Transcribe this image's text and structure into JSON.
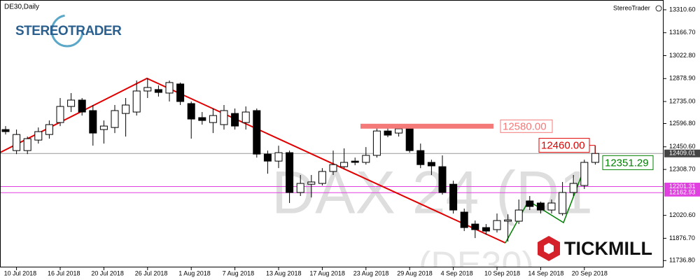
{
  "chart_data": {
    "type": "candlestick",
    "symbol": "DE30,Daily",
    "brand": "StereoTrader",
    "logo_left": "STEREOTRADER",
    "logo_right": "TICKMILL",
    "watermark": "DAX 24 (D1",
    "watermark_sub": "(DE30)",
    "up_color": "#ffffff",
    "down_color": "#000000",
    "categories": [
      null,
      "10 Jul 2018",
      null,
      null,
      null,
      "16 Jul 2018",
      null,
      null,
      null,
      "20 Jul 2018",
      null,
      null,
      null,
      "26 Jul 2018",
      null,
      null,
      null,
      "1 Aug 2018",
      null,
      null,
      null,
      "7 Aug 2018",
      null,
      null,
      null,
      "13 Aug 2018",
      null,
      null,
      null,
      "17 Aug 2018",
      null,
      null,
      null,
      "23 Aug 2018",
      null,
      null,
      null,
      "29 Aug 2018",
      null,
      null,
      null,
      "4 Sep 2018",
      null,
      null,
      null,
      "10 Sep 2018",
      null,
      null,
      null,
      "14 Sep 2018",
      null,
      null,
      null,
      "20 Sep 2018",
      null
    ],
    "open": [
      12559,
      12427,
      12427,
      12493,
      12528,
      12603,
      12704,
      12744,
      12678,
      12559,
      12572,
      12660,
      12669,
      12801,
      12810,
      12788,
      12845,
      12722,
      12634,
      12603,
      12590,
      12660,
      12603,
      12678,
      12405,
      12361,
      12414,
      12164,
      12216,
      12221,
      12296,
      12326,
      12361,
      12353,
      12397,
      12550,
      12537,
      12564,
      12427,
      12353,
      12326,
      12216,
      12041,
      11966,
      11944,
      11931,
      11984,
      11984,
      12111,
      12098,
      12054,
      12032,
      12164,
      12208,
      12353
    ],
    "high": [
      12581,
      12559,
      12515,
      12572,
      12616,
      12757,
      12788,
      12757,
      12713,
      12616,
      12713,
      12757,
      12867,
      12880,
      12836,
      12867,
      12854,
      12735,
      12669,
      12691,
      12713,
      12691,
      12704,
      12691,
      12427,
      12458,
      12427,
      12274,
      12274,
      12317,
      12427,
      12441,
      12383,
      12449,
      12568,
      12581,
      12590,
      12581,
      12471,
      12370,
      12397,
      12238,
      12063,
      11988,
      11966,
      12032,
      12027,
      12120,
      12142,
      12107,
      12120,
      12230,
      12274,
      12370,
      12458
    ],
    "low": [
      12528,
      12405,
      12405,
      12471,
      12502,
      12581,
      12669,
      12647,
      12458,
      12471,
      12537,
      12515,
      12647,
      12757,
      12766,
      12735,
      12713,
      12502,
      12590,
      12537,
      12559,
      12559,
      12559,
      12383,
      12282,
      12317,
      12098,
      12142,
      12133,
      12208,
      12274,
      12309,
      12335,
      12339,
      12383,
      12511,
      12515,
      12414,
      12317,
      12274,
      12151,
      12032,
      11922,
      11878,
      11900,
      11913,
      11856,
      11966,
      12054,
      12032,
      12032,
      12019,
      12142,
      12186,
      12339
    ],
    "close": [
      12546,
      12528,
      12502,
      12546,
      12590,
      12704,
      12744,
      12669,
      12537,
      12581,
      12678,
      12713,
      12801,
      12823,
      12792,
      12854,
      12735,
      12625,
      12616,
      12647,
      12678,
      12581,
      12669,
      12405,
      12361,
      12414,
      12164,
      12221,
      12230,
      12296,
      12339,
      12353,
      12353,
      12397,
      12550,
      12524,
      12564,
      12427,
      12339,
      12331,
      12164,
      12054,
      11944,
      11931,
      11922,
      11988,
      11992,
      12054,
      12076,
      12054,
      12098,
      12164,
      12221,
      12353,
      12409.01
    ],
    "ylim": [
      11694,
      13372
    ],
    "yticks": [
      {
        "value": 13310.6,
        "label": "13310.60"
      },
      {
        "value": 13166.7,
        "label": "13166.70"
      },
      {
        "value": 13022.8,
        "label": "13022.80"
      },
      {
        "value": 12878.9,
        "label": "12878.90"
      },
      {
        "value": 12735.0,
        "label": "12735.00"
      },
      {
        "value": 12596.8,
        "label": "12596.80"
      },
      {
        "value": 12450.6,
        "label": "12450.60"
      },
      {
        "value": 12308.7,
        "label": "12308.70"
      },
      {
        "value": 12020.6,
        "label": "12020.60"
      },
      {
        "value": 11876.7,
        "label": "11876.70"
      },
      {
        "value": 11736.8,
        "label": "11736.80"
      }
    ],
    "price_line": {
      "value": 12409.01,
      "label": "12409.01",
      "color": "#999999"
    },
    "levels": [
      {
        "value": 12201.31,
        "label": "12201.31",
        "color": "#e040e0"
      },
      {
        "value": 12162.93,
        "label": "12162.93",
        "color": "#e040e0"
      }
    ],
    "annotations": [
      {
        "value": 12580,
        "label": "12580.00",
        "color": "#f47a7a"
      },
      {
        "value": 12460,
        "label": "12460.00",
        "color": "#e00000"
      },
      {
        "value": 12351.29,
        "label": "12351.29",
        "color": "#008000"
      }
    ]
  }
}
